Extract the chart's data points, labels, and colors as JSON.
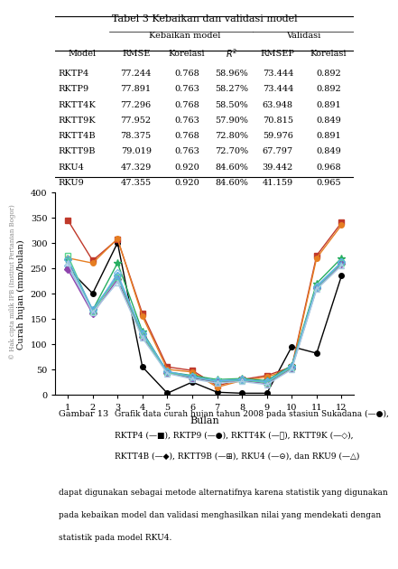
{
  "title": "Tabel 3 Kebaikan dan validasi model",
  "table_headers": [
    "Model",
    "RMSE",
    "Korelasi",
    "R2",
    "RMSEP",
    "Korelasi"
  ],
  "group_headers": [
    "Kebaikan model",
    "Validasi"
  ],
  "table_data": [
    [
      "RKTP4",
      "77.244",
      "0.768",
      "58.96%",
      "73.444",
      "0.892"
    ],
    [
      "RKTP9",
      "77.891",
      "0.763",
      "58.27%",
      "73.444",
      "0.892"
    ],
    [
      "RKTT4K",
      "77.296",
      "0.768",
      "58.50%",
      "63.948",
      "0.891"
    ],
    [
      "RKTT9K",
      "77.952",
      "0.763",
      "57.90%",
      "70.815",
      "0.849"
    ],
    [
      "RKTT4B",
      "78.375",
      "0.768",
      "72.80%",
      "59.976",
      "0.891"
    ],
    [
      "RKTT9B",
      "79.019",
      "0.763",
      "72.70%",
      "67.797",
      "0.849"
    ],
    [
      "RKU4",
      "47.329",
      "0.920",
      "84.60%",
      "39.442",
      "0.968"
    ],
    [
      "RKU9",
      "47.355",
      "0.920",
      "84.60%",
      "41.159",
      "0.965"
    ]
  ],
  "months": [
    1,
    2,
    3,
    4,
    5,
    6,
    7,
    8,
    9,
    10,
    11,
    12
  ],
  "series": {
    "Sukadana": {
      "values": [
        250,
        200,
        300,
        55,
        3,
        25,
        5,
        3,
        3,
        95,
        82,
        235
      ],
      "color": "#000000",
      "marker": "o",
      "marker_filled": true,
      "linewidth": 1.5,
      "markersize": 5
    },
    "RKTP4": {
      "values": [
        345,
        265,
        307,
        160,
        55,
        48,
        18,
        30,
        38,
        55,
        275,
        340
      ],
      "color": "#c0392b",
      "marker": "s",
      "marker_filled": true,
      "linewidth": 1.5,
      "markersize": 5
    },
    "RKTP9": {
      "values": [
        270,
        260,
        308,
        155,
        50,
        45,
        15,
        28,
        35,
        52,
        270,
        335
      ],
      "color": "#e67e22",
      "marker": "o",
      "marker_filled": true,
      "linewidth": 1.5,
      "markersize": 5
    },
    "RKTT4K": {
      "values": [
        265,
        167,
        260,
        125,
        45,
        38,
        30,
        32,
        28,
        58,
        220,
        270
      ],
      "color": "#27ae60",
      "marker": "*",
      "marker_filled": true,
      "linewidth": 1.5,
      "markersize": 7
    },
    "RKTT9K": {
      "values": [
        255,
        163,
        240,
        120,
        45,
        35,
        28,
        30,
        25,
        55,
        215,
        262
      ],
      "color": "#85c1e9",
      "marker": "D",
      "marker_filled": false,
      "linewidth": 1.5,
      "markersize": 5
    },
    "RKTT4B": {
      "values": [
        248,
        160,
        228,
        115,
        43,
        33,
        25,
        28,
        22,
        52,
        210,
        258
      ],
      "color": "#8e44ad",
      "marker": "D",
      "marker_filled": true,
      "linewidth": 1.5,
      "markersize": 5
    },
    "RKTT9B": {
      "values": [
        275,
        165,
        232,
        118,
        44,
        35,
        26,
        29,
        24,
        54,
        212,
        260
      ],
      "color": "#58d68d",
      "marker": "s",
      "marker_filled": false,
      "linewidth": 1.5,
      "markersize": 5
    },
    "RKU4": {
      "values": [
        268,
        168,
        235,
        122,
        46,
        36,
        27,
        30,
        26,
        56,
        213,
        262
      ],
      "color": "#5dade2",
      "marker": "D",
      "marker_filled": false,
      "linewidth": 1.5,
      "markersize": 5
    },
    "RKU9": {
      "values": [
        260,
        162,
        222,
        112,
        42,
        31,
        23,
        26,
        20,
        50,
        208,
        255
      ],
      "color": "#a9cce3",
      "marker": "^",
      "marker_filled": false,
      "linewidth": 1.5,
      "markersize": 5
    }
  },
  "ylabel": "Curah hujan (mm/bulan)",
  "xlabel": "Bulan",
  "ylim": [
    0,
    400
  ],
  "yticks": [
    0,
    50,
    100,
    150,
    200,
    250,
    300,
    350,
    400
  ],
  "xticks": [
    1,
    2,
    3,
    4,
    5,
    6,
    7,
    8,
    9,
    10,
    11,
    12
  ],
  "caption_title": "Gambar 13",
  "caption_text": "Grafik data curah hujan tahun 2008 pada stasiun Sukadana (—●),\nRKTP4 (—■), RKTP9 (—●), RKTT4K (—★), RKTT9K (—◇),\nRKTT4B (—◆), RKTT9B (—⊞), RKU4 (—⊝), dan RKU9 (—△)",
  "body_text": "dapat digunakan sebagai metode alternatifnya karena statistik yang digunakan\npada kebaikan model dan validasi menghasilkan nilai yang mendekati dengan\nstatistik pada model RKU4.",
  "watermark_text": "© Hak cipta milik IPB (Institut Pertanian Bogor)",
  "bg_color": "#ffffff"
}
